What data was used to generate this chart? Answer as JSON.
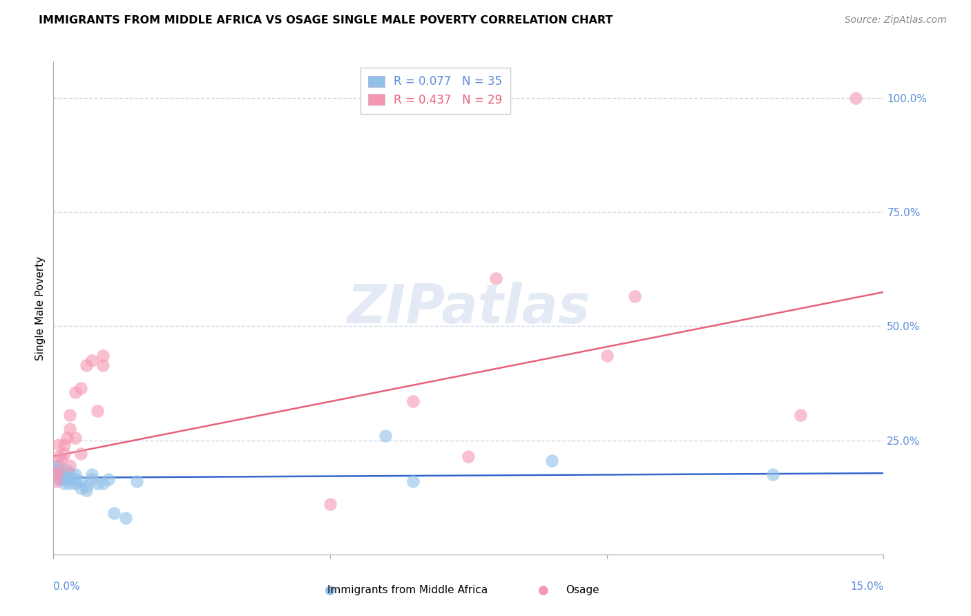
{
  "title": "IMMIGRANTS FROM MIDDLE AFRICA VS OSAGE SINGLE MALE POVERTY CORRELATION CHART",
  "source": "Source: ZipAtlas.com",
  "ylabel": "Single Male Poverty",
  "right_yticks": [
    "100.0%",
    "75.0%",
    "50.0%",
    "25.0%"
  ],
  "right_ytick_vals": [
    1.0,
    0.75,
    0.5,
    0.25
  ],
  "xlim": [
    0.0,
    0.15
  ],
  "ylim": [
    0.0,
    1.08
  ],
  "legend_blue_R": "R = 0.077",
  "legend_blue_N": "N = 35",
  "legend_pink_R": "R = 0.437",
  "legend_pink_N": "N = 29",
  "legend_label_blue": "Immigrants from Middle Africa",
  "legend_label_pink": "Osage",
  "blue_color": "#92c0e8",
  "pink_color": "#f597b2",
  "blue_line_color": "#3366cc",
  "pink_line_color": "#e8607a",
  "axis_color": "#5b8dd9",
  "grid_color": "#d0d8e8",
  "blue_x": [
    0.0005,
    0.0005,
    0.0007,
    0.001,
    0.001,
    0.001,
    0.001,
    0.0015,
    0.0015,
    0.002,
    0.002,
    0.002,
    0.0025,
    0.003,
    0.003,
    0.003,
    0.004,
    0.004,
    0.004,
    0.005,
    0.005,
    0.006,
    0.006,
    0.007,
    0.007,
    0.008,
    0.009,
    0.01,
    0.011,
    0.013,
    0.015,
    0.06,
    0.065,
    0.09,
    0.13
  ],
  "blue_y": [
    0.18,
    0.19,
    0.175,
    0.165,
    0.175,
    0.185,
    0.195,
    0.165,
    0.175,
    0.155,
    0.165,
    0.175,
    0.185,
    0.155,
    0.168,
    0.178,
    0.155,
    0.165,
    0.175,
    0.145,
    0.16,
    0.14,
    0.15,
    0.165,
    0.175,
    0.155,
    0.155,
    0.165,
    0.09,
    0.08,
    0.16,
    0.26,
    0.16,
    0.205,
    0.175
  ],
  "pink_x": [
    0.0005,
    0.0005,
    0.001,
    0.001,
    0.001,
    0.0015,
    0.002,
    0.002,
    0.0025,
    0.003,
    0.003,
    0.003,
    0.004,
    0.004,
    0.005,
    0.005,
    0.006,
    0.007,
    0.008,
    0.009,
    0.009,
    0.05,
    0.065,
    0.075,
    0.08,
    0.1,
    0.105,
    0.135,
    0.145
  ],
  "pink_y": [
    0.16,
    0.175,
    0.185,
    0.215,
    0.24,
    0.21,
    0.22,
    0.24,
    0.255,
    0.195,
    0.275,
    0.305,
    0.255,
    0.355,
    0.22,
    0.365,
    0.415,
    0.425,
    0.315,
    0.415,
    0.435,
    0.11,
    0.335,
    0.215,
    0.605,
    0.435,
    0.565,
    0.305,
    1.0
  ],
  "blue_trend_x": [
    0.0,
    0.15
  ],
  "blue_trend_y": [
    0.168,
    0.178
  ],
  "pink_trend_x": [
    0.0,
    0.15
  ],
  "pink_trend_y": [
    0.215,
    0.575
  ]
}
